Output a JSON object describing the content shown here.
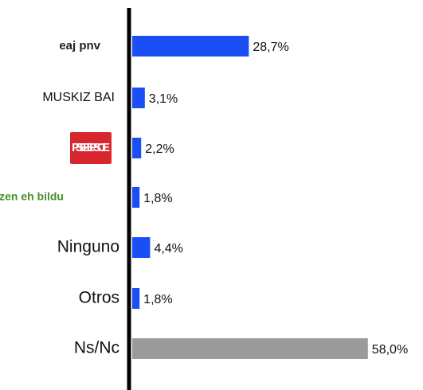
{
  "chart_data": {
    "type": "bar",
    "orientation": "horizontal",
    "categories": [
      "eaj pnv",
      "MUSKIZ BAI",
      "PSE-EE PSOE",
      "Biltzen eh bildu",
      "Ninguno",
      "Otros",
      "Ns/Nc"
    ],
    "values": [
      28.7,
      3.1,
      2.2,
      1.8,
      4.4,
      1.8,
      58.0
    ],
    "value_labels": [
      "28,7%",
      "3,1%",
      "2,2%",
      "1,8%",
      "4,4%",
      "1,8%",
      "58,0%"
    ],
    "colors": [
      "#1a4ff5",
      "#1a4ff5",
      "#1a4ff5",
      "#1a4ff5",
      "#1a4ff5",
      "#1a4ff5",
      "#9a9a9a"
    ]
  }
}
